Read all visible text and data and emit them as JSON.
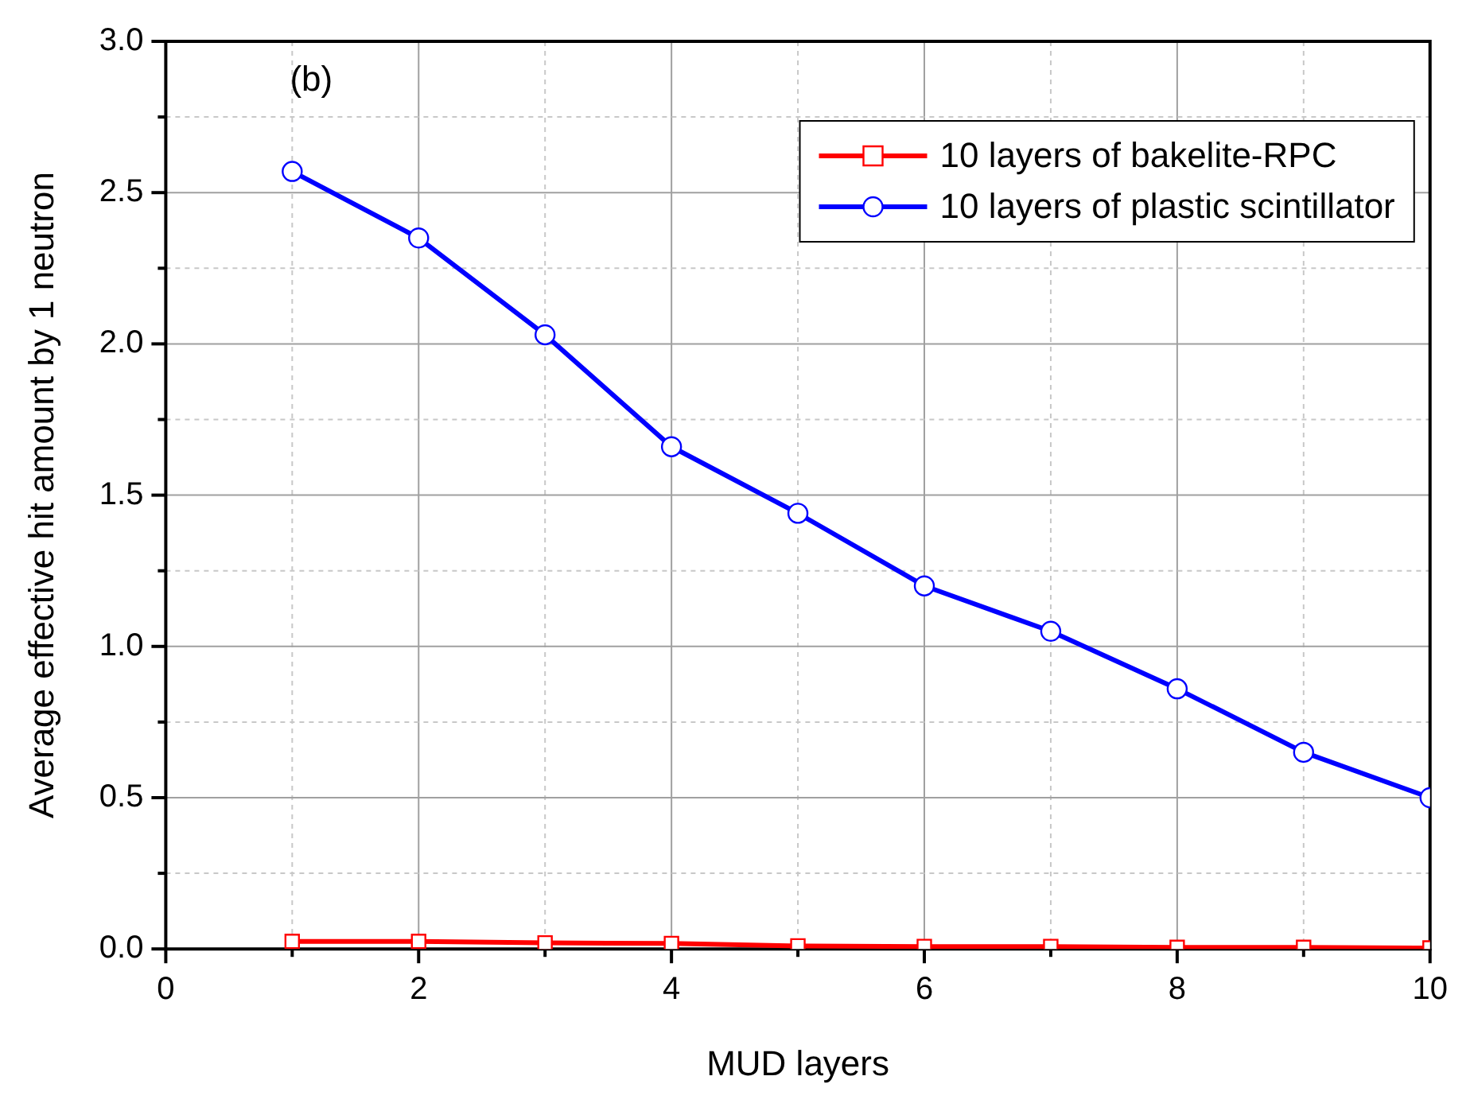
{
  "chart_data": {
    "type": "line",
    "xlabel": "MUD layers",
    "ylabel": "Average effective hit amount by 1 neutron",
    "annotations": [
      "(b)"
    ],
    "x": [
      1,
      2,
      3,
      4,
      5,
      6,
      7,
      8,
      9,
      10
    ],
    "series": [
      {
        "name": "10 layers of bakelite-RPC",
        "color": "#ff0000",
        "marker": "square",
        "values": [
          0.025,
          0.025,
          0.02,
          0.018,
          0.01,
          0.008,
          0.008,
          0.005,
          0.005,
          0.003
        ]
      },
      {
        "name": "10 layers of plastic scintillator",
        "color": "#0000ff",
        "marker": "circle",
        "values": [
          2.57,
          2.35,
          2.03,
          1.66,
          1.44,
          1.2,
          1.05,
          0.86,
          0.65,
          0.5
        ]
      }
    ],
    "xlim": [
      0,
      10
    ],
    "ylim": [
      0,
      3
    ],
    "xticks": [
      0,
      {
        "value": 1,
        "label": null
      },
      2,
      {
        "value": 3,
        "label": null
      },
      4,
      {
        "value": 5,
        "label": null
      },
      6,
      {
        "value": 7,
        "label": null
      },
      8,
      {
        "value": 9,
        "label": null
      },
      10
    ],
    "yticks": [
      "0.0",
      {
        "value": 0.25,
        "label": null
      },
      {
        "value": 0.5,
        "label": "0.5"
      },
      {
        "value": 0.75,
        "label": null
      },
      {
        "value": 1,
        "label": "1.0"
      },
      {
        "value": 1.25,
        "label": null
      },
      {
        "value": 1.5,
        "label": "1.5"
      },
      {
        "value": 1.75,
        "label": null
      },
      {
        "value": 2,
        "label": "2.0"
      },
      {
        "value": 2.25,
        "label": null
      },
      {
        "value": 2.5,
        "label": "2.5"
      },
      {
        "value": 2.75,
        "label": null
      },
      {
        "value": 3,
        "label": "3.0"
      }
    ],
    "grid": true,
    "legend": "top right",
    "line_style": "solid"
  }
}
